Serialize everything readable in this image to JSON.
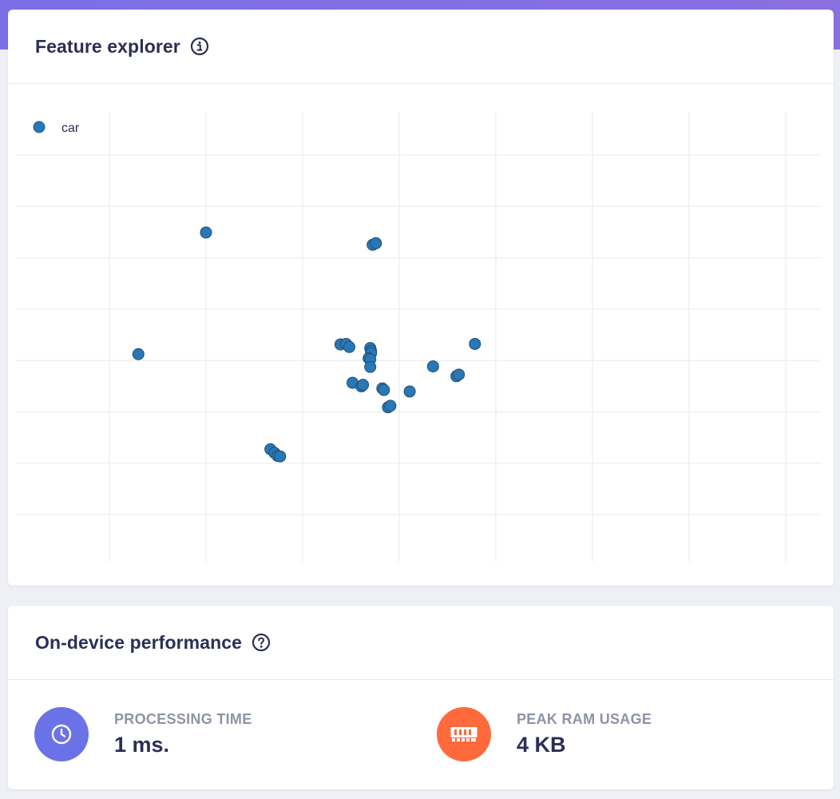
{
  "feature_card": {
    "title": "Feature explorer",
    "info_icon": "info-circle-icon"
  },
  "chart_data": {
    "type": "scatter",
    "legend_position": "top-left",
    "grid": true,
    "color": "#2978b5",
    "xlim": [
      0,
      8.4
    ],
    "ylim": [
      0,
      8.8
    ],
    "series": [
      {
        "name": "car",
        "points": [
          [
            0.36,
            4.06
          ],
          [
            1.2,
            6.44
          ],
          [
            3.02,
            3.5
          ],
          [
            2.0,
            2.2
          ],
          [
            2.05,
            2.13
          ],
          [
            2.09,
            2.07
          ],
          [
            2.12,
            2.06
          ],
          [
            2.87,
            4.25
          ],
          [
            2.94,
            4.26
          ],
          [
            2.98,
            4.2
          ],
          [
            3.24,
            4.18
          ],
          [
            3.25,
            4.12
          ],
          [
            3.25,
            4.08
          ],
          [
            3.22,
            3.98
          ],
          [
            3.24,
            3.96
          ],
          [
            3.24,
            3.81
          ],
          [
            3.13,
            3.43
          ],
          [
            3.15,
            3.46
          ],
          [
            3.39,
            3.39
          ],
          [
            3.41,
            3.36
          ],
          [
            3.46,
            3.02
          ],
          [
            3.49,
            3.05
          ],
          [
            3.73,
            3.33
          ],
          [
            4.02,
            3.82
          ],
          [
            4.31,
            3.63
          ],
          [
            4.34,
            3.66
          ],
          [
            4.54,
            4.26
          ],
          [
            3.27,
            6.2
          ],
          [
            3.31,
            6.23
          ]
        ]
      }
    ]
  },
  "perf_card": {
    "title": "On-device performance",
    "help_icon": "question-circle-icon",
    "metrics": [
      {
        "label": "Processing time",
        "value": "1 ms.",
        "icon": "clock-icon",
        "color": "#6b72e8"
      },
      {
        "label": "Peak RAM usage",
        "value": "4 KB",
        "icon": "memory-chip-icon",
        "color": "#ff6a3d"
      }
    ]
  }
}
